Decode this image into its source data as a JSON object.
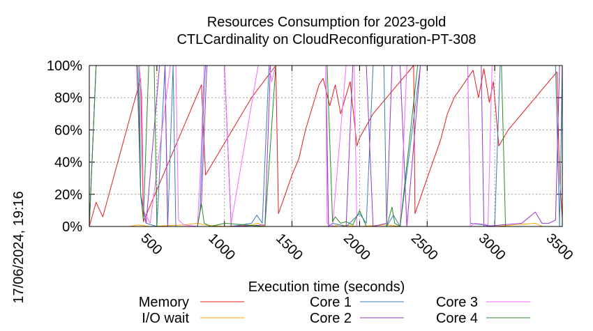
{
  "chart_data": {
    "type": "line",
    "title": "Resources Consumption for 2023-gold",
    "subtitle": "CTLCardinality on CloudReconfiguration-PT-308",
    "xlabel": "Execution time (seconds)",
    "ylabel": "",
    "side_label": "17/06/2024, 19:16",
    "xlim": [
      0,
      3500
    ],
    "ylim": [
      0,
      100
    ],
    "x_ticks": [
      500,
      1000,
      1500,
      2000,
      2500,
      3000,
      3500
    ],
    "x_tick_labels": [
      "500",
      "1000",
      "1500",
      "2000",
      "2500",
      "3000",
      "3500"
    ],
    "y_ticks": [
      0,
      20,
      40,
      60,
      80,
      100
    ],
    "y_tick_labels": [
      "0%",
      "20%",
      "40%",
      "60%",
      "80%",
      "100%"
    ],
    "grid": true,
    "legend_position": "bottom",
    "series": [
      {
        "name": "Memory",
        "color": "#e41a1c",
        "points": [
          [
            0,
            0
          ],
          [
            50,
            15
          ],
          [
            100,
            6
          ],
          [
            380,
            92
          ],
          [
            400,
            3
          ],
          [
            830,
            88
          ],
          [
            860,
            32
          ],
          [
            1200,
            80
          ],
          [
            1380,
            100
          ],
          [
            1400,
            8
          ],
          [
            1450,
            20
          ],
          [
            1500,
            32
          ],
          [
            1550,
            42
          ],
          [
            1600,
            60
          ],
          [
            1700,
            88
          ],
          [
            1730,
            92
          ],
          [
            1780,
            75
          ],
          [
            1820,
            88
          ],
          [
            1860,
            70
          ],
          [
            1930,
            90
          ],
          [
            1980,
            50
          ],
          [
            2000,
            55
          ],
          [
            2100,
            70
          ],
          [
            2400,
            100
          ],
          [
            2410,
            8
          ],
          [
            2500,
            30
          ],
          [
            2600,
            54
          ],
          [
            2650,
            70
          ],
          [
            2700,
            80
          ],
          [
            2840,
            97
          ],
          [
            2880,
            80
          ],
          [
            2920,
            98
          ],
          [
            2960,
            77
          ],
          [
            2990,
            90
          ],
          [
            3030,
            50
          ],
          [
            3100,
            60
          ],
          [
            3300,
            80
          ],
          [
            3460,
            96
          ],
          [
            3480,
            30
          ],
          [
            3500,
            5
          ]
        ]
      },
      {
        "name": "I/O wait",
        "color": "#ffa500",
        "points": [
          [
            0,
            0
          ],
          [
            300,
            0
          ],
          [
            360,
            1
          ],
          [
            450,
            0
          ],
          [
            700,
            1
          ],
          [
            800,
            2
          ],
          [
            850,
            1
          ],
          [
            1000,
            0
          ],
          [
            1200,
            1
          ],
          [
            1250,
            2
          ],
          [
            1300,
            0
          ],
          [
            1800,
            0
          ],
          [
            1850,
            1
          ],
          [
            2000,
            0
          ],
          [
            2200,
            1
          ],
          [
            2300,
            0
          ],
          [
            3000,
            0
          ],
          [
            3300,
            2
          ],
          [
            3350,
            0
          ],
          [
            3500,
            0
          ]
        ]
      },
      {
        "name": "Core 1",
        "color": "#377eb8",
        "points": [
          [
            0,
            0
          ],
          [
            50,
            100
          ],
          [
            370,
            100
          ],
          [
            380,
            20
          ],
          [
            420,
            2
          ],
          [
            500,
            0
          ],
          [
            560,
            100
          ],
          [
            580,
            0
          ],
          [
            620,
            100
          ],
          [
            640,
            0
          ],
          [
            800,
            0
          ],
          [
            820,
            10
          ],
          [
            850,
            87
          ],
          [
            860,
            100
          ],
          [
            1000,
            100
          ],
          [
            1050,
            0
          ],
          [
            1200,
            2
          ],
          [
            1240,
            7
          ],
          [
            1280,
            2
          ],
          [
            1330,
            100
          ],
          [
            1380,
            100
          ],
          [
            1400,
            100
          ],
          [
            1750,
            100
          ],
          [
            1770,
            0
          ],
          [
            1800,
            2
          ],
          [
            1900,
            0
          ],
          [
            2000,
            8
          ],
          [
            2050,
            2
          ],
          [
            2100,
            100
          ],
          [
            2180,
            100
          ],
          [
            2200,
            0
          ],
          [
            2250,
            7
          ],
          [
            2300,
            0
          ],
          [
            2450,
            100
          ],
          [
            2800,
            100
          ],
          [
            2820,
            2
          ],
          [
            3000,
            0
          ],
          [
            3040,
            100
          ],
          [
            3450,
            100
          ],
          [
            3480,
            0
          ],
          [
            3500,
            100
          ]
        ]
      },
      {
        "name": "Core 2",
        "color": "#9933cc",
        "points": [
          [
            0,
            0
          ],
          [
            50,
            100
          ],
          [
            350,
            100
          ],
          [
            360,
            80
          ],
          [
            380,
            20
          ],
          [
            420,
            2
          ],
          [
            520,
            100
          ],
          [
            560,
            100
          ],
          [
            580,
            0
          ],
          [
            800,
            0
          ],
          [
            830,
            15
          ],
          [
            870,
            100
          ],
          [
            1000,
            100
          ],
          [
            1050,
            0
          ],
          [
            1300,
            1
          ],
          [
            1340,
            100
          ],
          [
            1400,
            100
          ],
          [
            1750,
            100
          ],
          [
            1770,
            0
          ],
          [
            1900,
            0
          ],
          [
            1950,
            100
          ],
          [
            2050,
            100
          ],
          [
            2100,
            0
          ],
          [
            2200,
            2
          ],
          [
            2240,
            100
          ],
          [
            2300,
            100
          ],
          [
            2350,
            0
          ],
          [
            2450,
            100
          ],
          [
            2900,
            100
          ],
          [
            2920,
            0
          ],
          [
            3200,
            2
          ],
          [
            3300,
            9
          ],
          [
            3350,
            2
          ],
          [
            3400,
            2
          ],
          [
            3450,
            4
          ],
          [
            3480,
            100
          ],
          [
            3500,
            100
          ]
        ]
      },
      {
        "name": "Core 3",
        "color": "#ff66ff",
        "points": [
          [
            0,
            0
          ],
          [
            50,
            100
          ],
          [
            370,
            100
          ],
          [
            390,
            80
          ],
          [
            400,
            10
          ],
          [
            450,
            2
          ],
          [
            600,
            100
          ],
          [
            640,
            100
          ],
          [
            660,
            4
          ],
          [
            700,
            1
          ],
          [
            800,
            0
          ],
          [
            820,
            30
          ],
          [
            850,
            100
          ],
          [
            1000,
            100
          ],
          [
            1050,
            2
          ],
          [
            1250,
            100
          ],
          [
            1330,
            100
          ],
          [
            1350,
            90
          ],
          [
            1380,
            100
          ],
          [
            1750,
            100
          ],
          [
            1760,
            2
          ],
          [
            1800,
            0
          ],
          [
            1900,
            100
          ],
          [
            1960,
            100
          ],
          [
            1980,
            0
          ],
          [
            2300,
            0
          ],
          [
            2350,
            100
          ],
          [
            2450,
            100
          ],
          [
            2800,
            100
          ],
          [
            2820,
            0
          ],
          [
            2850,
            2
          ],
          [
            2950,
            1
          ],
          [
            2980,
            100
          ],
          [
            3400,
            100
          ],
          [
            3500,
            100
          ]
        ]
      },
      {
        "name": "Core 4",
        "color": "#238b23",
        "points": [
          [
            0,
            0
          ],
          [
            50,
            100
          ],
          [
            360,
            100
          ],
          [
            380,
            20
          ],
          [
            400,
            4
          ],
          [
            440,
            100
          ],
          [
            480,
            100
          ],
          [
            500,
            0
          ],
          [
            800,
            0
          ],
          [
            830,
            14
          ],
          [
            850,
            2
          ],
          [
            900,
            0
          ],
          [
            1000,
            2
          ],
          [
            1300,
            0
          ],
          [
            1380,
            100
          ],
          [
            1400,
            100
          ],
          [
            1760,
            100
          ],
          [
            1800,
            3
          ],
          [
            1820,
            6
          ],
          [
            1860,
            2
          ],
          [
            1900,
            3
          ],
          [
            1950,
            1
          ],
          [
            2000,
            10
          ],
          [
            2050,
            0
          ],
          [
            2200,
            0
          ],
          [
            2240,
            12
          ],
          [
            2260,
            2
          ],
          [
            2300,
            0
          ],
          [
            2430,
            100
          ],
          [
            3050,
            100
          ],
          [
            3080,
            0
          ],
          [
            3500,
            0
          ]
        ]
      }
    ]
  }
}
